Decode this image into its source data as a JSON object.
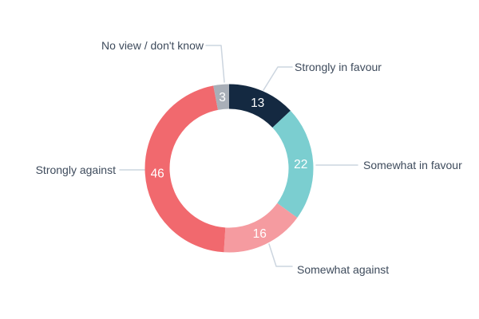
{
  "chart_data": {
    "type": "pie",
    "variant": "donut",
    "title": "",
    "categories": [
      "Strongly in favour",
      "Somewhat in favour",
      "Somewhat against",
      "Strongly against",
      "No view / don't know"
    ],
    "values": [
      13,
      22,
      16,
      46,
      3
    ],
    "segments": [
      {
        "label": "Strongly in favour",
        "value": 13,
        "color": "#142941"
      },
      {
        "label": "Somewhat in favour",
        "value": 22,
        "color": "#7bced0"
      },
      {
        "label": "Somewhat against",
        "value": 16,
        "color": "#f59ba0"
      },
      {
        "label": "Strongly against",
        "value": 46,
        "color": "#f1696e"
      },
      {
        "label": "No view / don't know",
        "value": 3,
        "color": "#a9afb8"
      }
    ],
    "total": 100,
    "start_angle_deg": 0,
    "direction": "clockwise",
    "legend_position": "callout-labels",
    "value_label_color": "#ffffff",
    "label_color": "#3e4b5c",
    "leader_line_color": "#ccd5df",
    "background_color": "#ffffff"
  }
}
